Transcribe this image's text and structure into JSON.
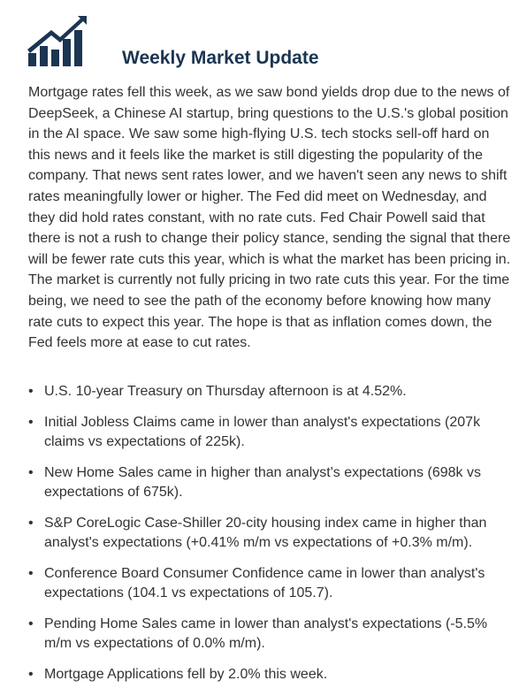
{
  "header": {
    "title": "Weekly Market Update"
  },
  "body": {
    "paragraph": "Mortgage rates fell this week, as we saw bond yields drop due to the news of DeepSeek, a Chinese AI startup, bring questions to the U.S.'s global position in the AI space. We saw some high-flying U.S. tech stocks sell-off hard on this news and it feels like the market is still digesting the popularity of the company. That news sent rates lower, and we haven't seen any news to shift rates meaningfully lower or higher. The Fed did meet on Wednesday, and they did hold rates constant, with no rate cuts. Fed Chair Powell said that there is not a rush to change their policy stance, sending the signal that there will be fewer rate cuts this year, which is what the market has been pricing in. The market is currently not fully pricing in two rate cuts this year. For the time being, we need to see the path of the economy before knowing how many rate cuts to expect this year. The hope is that as inflation comes down, the Fed feels more at ease to cut rates.",
    "bullets": [
      "U.S. 10-year Treasury on Thursday afternoon is at 4.52%.",
      "Initial Jobless Claims came in lower than analyst's expectations (207k claims vs expectations of 225k).",
      "New Home Sales came in higher than analyst's expectations (698k vs expectations of 675k).",
      "S&P CoreLogic Case-Shiller 20-city housing index came in higher than analyst's expectations (+0.41% m/m vs expectations of +0.3% m/m).",
      "Conference Board Consumer Confidence came in lower than analyst's expectations (104.1 vs expectations of 105.7).",
      "Pending Home Sales came in lower than analyst's expectations (-5.5% m/m vs expectations of 0.0% m/m).",
      "Mortgage Applications fell by 2.0% this week."
    ]
  }
}
